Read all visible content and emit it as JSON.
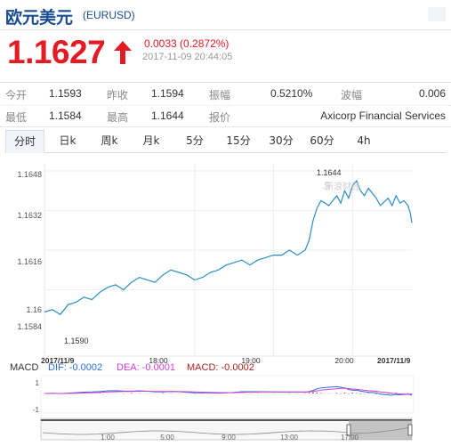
{
  "header": {
    "title": "欧元美元",
    "code": "(EURUSD)"
  },
  "quote": {
    "price": "1.1627",
    "change": "0.0033 (0.2872%)",
    "time": "2017-11-09 20:44:05",
    "direction": "up",
    "color_up": "#e31b23"
  },
  "stats": {
    "open_label": "今开",
    "open_value": "1.1593",
    "prev_close_label": "昨收",
    "prev_close_value": "1.1594",
    "amplitude_label": "振幅",
    "amplitude_value": "0.5210%",
    "wave_label": "波幅",
    "wave_value": "0.006",
    "low_label": "最低",
    "low_value": "1.1584",
    "high_label": "最高",
    "high_value": "1.1644",
    "quote_label": "报价",
    "quote_value": "Axicorp Financial Services"
  },
  "tabs": [
    "分时",
    "日k",
    "周k",
    "月k",
    "5分",
    "15分",
    "30分",
    "60分",
    "4h"
  ],
  "active_tab": "分时",
  "chart_data": {
    "type": "line",
    "y_ticks": [
      "1.1648",
      "1.1632",
      "1.1616",
      "1.16",
      "1.1584"
    ],
    "ylim": [
      1.1584,
      1.1648
    ],
    "x_ticks": [
      "2017/11/9",
      "18:00",
      "19:00",
      "20:00",
      "2017/11/9"
    ],
    "x_range_hours": [
      16.1,
      20.75
    ],
    "annotations": {
      "max_label": "1.1644",
      "min_label": "1.1590",
      "watermark": "新浪财经"
    },
    "series": [
      {
        "values": [
          [
            16.1,
            1.1591
          ],
          [
            16.2,
            1.1592
          ],
          [
            16.3,
            1.159
          ],
          [
            16.4,
            1.1594
          ],
          [
            16.5,
            1.1595
          ],
          [
            16.6,
            1.1597
          ],
          [
            16.7,
            1.1596
          ],
          [
            16.8,
            1.1599
          ],
          [
            16.9,
            1.1601
          ],
          [
            17.0,
            1.1602
          ],
          [
            17.1,
            1.16
          ],
          [
            17.2,
            1.1603
          ],
          [
            17.3,
            1.1605
          ],
          [
            17.4,
            1.1604
          ],
          [
            17.5,
            1.1603
          ],
          [
            17.6,
            1.1606
          ],
          [
            17.7,
            1.1608
          ],
          [
            17.8,
            1.1607
          ],
          [
            17.9,
            1.1606
          ],
          [
            18.0,
            1.1604
          ],
          [
            18.1,
            1.1605
          ],
          [
            18.2,
            1.1607
          ],
          [
            18.3,
            1.1608
          ],
          [
            18.4,
            1.161
          ],
          [
            18.5,
            1.1611
          ],
          [
            18.6,
            1.1612
          ],
          [
            18.7,
            1.161
          ],
          [
            18.8,
            1.1612
          ],
          [
            18.9,
            1.1613
          ],
          [
            19.0,
            1.1614
          ],
          [
            19.1,
            1.1614
          ],
          [
            19.2,
            1.1616
          ],
          [
            19.3,
            1.1614
          ],
          [
            19.4,
            1.1616
          ],
          [
            19.45,
            1.162
          ],
          [
            19.5,
            1.1628
          ],
          [
            19.55,
            1.1633
          ],
          [
            19.6,
            1.1636
          ],
          [
            19.7,
            1.1634
          ],
          [
            19.8,
            1.1638
          ],
          [
            19.85,
            1.1635
          ],
          [
            19.9,
            1.164
          ],
          [
            19.95,
            1.1637
          ],
          [
            20.0,
            1.1642
          ],
          [
            20.05,
            1.1644
          ],
          [
            20.1,
            1.164
          ],
          [
            20.15,
            1.1638
          ],
          [
            20.2,
            1.1641
          ],
          [
            20.3,
            1.1637
          ],
          [
            20.35,
            1.1634
          ],
          [
            20.45,
            1.1637
          ],
          [
            20.5,
            1.1634
          ],
          [
            20.55,
            1.1638
          ],
          [
            20.6,
            1.1635
          ],
          [
            20.65,
            1.1636
          ],
          [
            20.7,
            1.1634
          ],
          [
            20.73,
            1.1631
          ],
          [
            20.75,
            1.1627
          ]
        ]
      }
    ],
    "macd": {
      "label": "MACD",
      "dif_label": "DIF: -0.0002",
      "dea_label": "DEA: -0.0001",
      "macd_label": "MACD: -0.0002",
      "y_ticks": [
        "1",
        "-1"
      ],
      "dif_color": "#2f6fd6",
      "dea_color": "#d33fd3",
      "macd_color": "#b22222"
    },
    "navigator": {
      "labels": [
        "1:00",
        "5:00",
        "9:00",
        "13:00",
        "17:00"
      ]
    }
  },
  "colors": {
    "accent": "#1a4d8f",
    "line": "#2a8ec4",
    "grid": "#eeeeee"
  }
}
